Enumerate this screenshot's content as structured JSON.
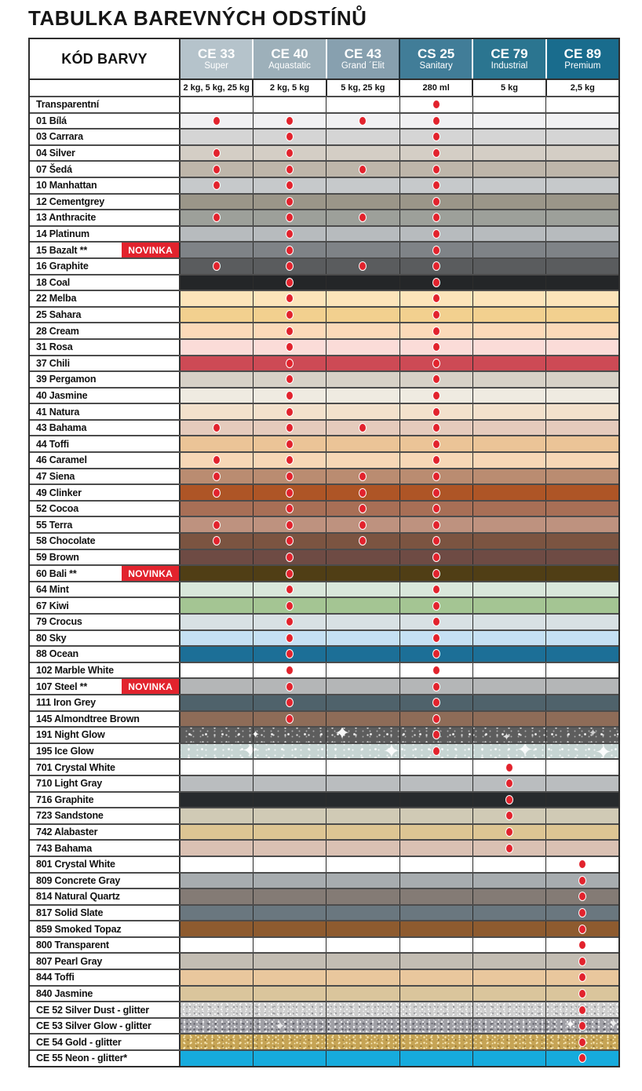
{
  "title": "TABULKA BAREVNÝCH ODSTÍNŮ",
  "colors": {
    "accent_red": "#e2232d",
    "grid_line": "#2e2e2e",
    "page_background": "#ffffff"
  },
  "table": {
    "code_header": "KÓD BARVY",
    "novinka_label": "NOVINKA",
    "columns": [
      {
        "id": "ce33",
        "code": "CE 33",
        "name": "Super",
        "size": "2 kg, 5 kg, 25 kg",
        "color": "#b5c3cb"
      },
      {
        "id": "ce40",
        "code": "CE 40",
        "name": "Aquastatic",
        "size": "2 kg, 5 kg",
        "color": "#9db0ba"
      },
      {
        "id": "ce43",
        "code": "CE 43",
        "name": "Grand ´Elit",
        "size": "5 kg, 25 kg",
        "color": "#87a0af"
      },
      {
        "id": "cs25",
        "code": "CS 25",
        "name": "Sanitary",
        "size": "280 ml",
        "color": "#417d98"
      },
      {
        "id": "ce79",
        "code": "CE 79",
        "name": "Industrial",
        "size": "5 kg",
        "color": "#2b7590"
      },
      {
        "id": "ce89",
        "code": "CE 89",
        "name": "Premium",
        "size": "2,5 kg",
        "color": "#196c8d"
      }
    ],
    "rows": [
      {
        "name": "Transparentní",
        "color": "#ffffff",
        "dots": [
          "cs25"
        ]
      },
      {
        "name": "01 Bílá",
        "color": "#f0f0f2",
        "dots": [
          "ce33",
          "ce40",
          "ce43",
          "cs25"
        ]
      },
      {
        "name": "03 Carrara",
        "color": "#d5d5d5",
        "dots": [
          "ce40",
          "cs25"
        ]
      },
      {
        "name": "04 Silver",
        "color": "#d4cec5",
        "dots": [
          "ce33",
          "ce40",
          "cs25"
        ]
      },
      {
        "name": "07 Šedá",
        "color": "#beb6aa",
        "dots": [
          "ce33",
          "ce40",
          "ce43",
          "cs25"
        ]
      },
      {
        "name": "10 Manhattan",
        "color": "#c6c9cb",
        "dots": [
          "ce33",
          "ce40",
          "cs25"
        ]
      },
      {
        "name": "12 Cementgrey",
        "color": "#9b9689",
        "dots": [
          "ce40",
          "cs25"
        ]
      },
      {
        "name": "13 Anthracite",
        "color": "#9da09a",
        "dots": [
          "ce33",
          "ce40",
          "ce43",
          "cs25"
        ]
      },
      {
        "name": "14 Platinum",
        "color": "#b7bbbe",
        "dots": [
          "ce40",
          "cs25"
        ]
      },
      {
        "name": "15 Bazalt **",
        "color": "#7f8387",
        "dots": [
          "ce40",
          "cs25"
        ],
        "novinka": true
      },
      {
        "name": "16 Graphite",
        "color": "#5a5c5e",
        "dots": [
          "ce33",
          "ce40",
          "ce43",
          "cs25"
        ]
      },
      {
        "name": "18 Coal",
        "color": "#242628",
        "dots": [
          "ce40",
          "cs25"
        ]
      },
      {
        "name": "22 Melba",
        "color": "#fce4ba",
        "dots": [
          "ce40",
          "cs25"
        ]
      },
      {
        "name": "25 Sahara",
        "color": "#f2d08f",
        "dots": [
          "ce40",
          "cs25"
        ]
      },
      {
        "name": "28 Cream",
        "color": "#fcdab9",
        "dots": [
          "ce40",
          "cs25"
        ]
      },
      {
        "name": "31 Rosa",
        "color": "#fbdcd8",
        "dots": [
          "ce40",
          "cs25"
        ]
      },
      {
        "name": "37 Chili",
        "color": "#cd4a55",
        "dots": [
          "ce40",
          "cs25"
        ]
      },
      {
        "name": "39 Pergamon",
        "color": "#d7d1c7",
        "dots": [
          "ce40",
          "cs25"
        ]
      },
      {
        "name": "40 Jasmine",
        "color": "#efebe1",
        "dots": [
          "ce40",
          "cs25"
        ]
      },
      {
        "name": "41 Natura",
        "color": "#f3e1cc",
        "dots": [
          "ce40",
          "cs25"
        ]
      },
      {
        "name": "43 Bahama",
        "color": "#e5cbbc",
        "dots": [
          "ce33",
          "ce40",
          "ce43",
          "cs25"
        ]
      },
      {
        "name": "44 Toffi",
        "color": "#ebc497",
        "dots": [
          "ce40",
          "cs25"
        ]
      },
      {
        "name": "46 Caramel",
        "color": "#f7d7b6",
        "dots": [
          "ce33",
          "ce40",
          "cs25"
        ]
      },
      {
        "name": "47 Siena",
        "color": "#ba8c71",
        "dots": [
          "ce33",
          "ce40",
          "ce43",
          "cs25"
        ]
      },
      {
        "name": "49 Clinker",
        "color": "#ae5526",
        "dots": [
          "ce33",
          "ce40",
          "ce43",
          "cs25"
        ]
      },
      {
        "name": "52 Cocoa",
        "color": "#a86f56",
        "dots": [
          "ce40",
          "ce43",
          "cs25"
        ]
      },
      {
        "name": "55 Terra",
        "color": "#be927f",
        "dots": [
          "ce33",
          "ce40",
          "ce43",
          "cs25"
        ]
      },
      {
        "name": "58 Chocolate",
        "color": "#7b5441",
        "dots": [
          "ce33",
          "ce40",
          "ce43",
          "cs25"
        ]
      },
      {
        "name": "59 Brown",
        "color": "#6e4b44",
        "dots": [
          "ce40",
          "cs25"
        ]
      },
      {
        "name": "60 Bali **",
        "color": "#503e15",
        "dots": [
          "ce40",
          "cs25"
        ],
        "novinka": true
      },
      {
        "name": "64 Mint",
        "color": "#d9e7db",
        "dots": [
          "ce40",
          "cs25"
        ]
      },
      {
        "name": "67 Kiwi",
        "color": "#a4c593",
        "dots": [
          "ce40",
          "cs25"
        ]
      },
      {
        "name": "79 Crocus",
        "color": "#d8e1e4",
        "dots": [
          "ce40",
          "cs25"
        ]
      },
      {
        "name": "80 Sky",
        "color": "#c5e0f3",
        "dots": [
          "ce40",
          "cs25"
        ]
      },
      {
        "name": "88 Ocean",
        "color": "#1c6f97",
        "dots": [
          "ce40",
          "cs25"
        ]
      },
      {
        "name": "102 Marble White",
        "color": "#ffffff",
        "dots": [
          "ce40",
          "cs25"
        ]
      },
      {
        "name": "107 Steel **",
        "color": "#b4b6b7",
        "dots": [
          "ce40",
          "cs25"
        ],
        "novinka": true
      },
      {
        "name": "111 Iron Grey",
        "color": "#4f626b",
        "dots": [
          "ce40",
          "cs25"
        ]
      },
      {
        "name": "145 Almondtree Brown",
        "color": "#8e6c58",
        "dots": [
          "ce40",
          "cs25"
        ]
      },
      {
        "name": "191 Night Glow",
        "color": "#5d5d5d",
        "dots": [
          "cs25"
        ],
        "texture": "glitter-dark"
      },
      {
        "name": "195 Ice Glow",
        "color": "#c7d5d3",
        "dots": [
          "cs25"
        ],
        "texture": "glitter-light"
      },
      {
        "name": "701 Crystal White",
        "color": "#ffffff",
        "dots": [
          "ce79"
        ]
      },
      {
        "name": "710 Light Gray",
        "color": "#babdbf",
        "dots": [
          "ce79"
        ]
      },
      {
        "name": "716 Graphite",
        "color": "#272a2d",
        "dots": [
          "ce79"
        ]
      },
      {
        "name": "723 Sandstone",
        "color": "#d0cab5",
        "dots": [
          "ce79"
        ]
      },
      {
        "name": "742 Alabaster",
        "color": "#ddc593",
        "dots": [
          "ce79"
        ]
      },
      {
        "name": "743 Bahama",
        "color": "#dac1b3",
        "dots": [
          "ce79"
        ]
      },
      {
        "name": "801 Crystal White",
        "color": "#ffffff",
        "dots": [
          "ce89"
        ]
      },
      {
        "name": "809 Concrete Gray",
        "color": "#a7acaf",
        "dots": [
          "ce89"
        ]
      },
      {
        "name": "814 Natural Quartz",
        "color": "#847b75",
        "dots": [
          "ce89"
        ]
      },
      {
        "name": "817 Solid Slate",
        "color": "#6a777f",
        "dots": [
          "ce89"
        ]
      },
      {
        "name": "859 Smoked Topaz",
        "color": "#8e5b2f",
        "dots": [
          "ce89"
        ]
      },
      {
        "name": "800 Transparent",
        "color": "#ffffff",
        "dots": [
          "ce89"
        ]
      },
      {
        "name": "807 Pearl Gray",
        "color": "#c3bdb3",
        "dots": [
          "ce89"
        ]
      },
      {
        "name": "844 Toffi",
        "color": "#e9c79d",
        "dots": [
          "ce89"
        ]
      },
      {
        "name": "840 Jasmine",
        "color": "#dac59c",
        "dots": [
          "ce89"
        ]
      },
      {
        "name": "CE 52 Silver Dust - glitter",
        "color": "#cecece",
        "dots": [
          "ce89"
        ],
        "texture": "glitter-silver"
      },
      {
        "name": "CE 53 Silver Glow - glitter",
        "color": "#a0a0a6",
        "dots": [
          "ce89"
        ],
        "texture": "glitter-silver-dark"
      },
      {
        "name": "CE 54 Gold - glitter",
        "color": "#c6a455",
        "dots": [
          "ce89"
        ],
        "texture": "glitter-gold"
      },
      {
        "name": "CE 55 Neon - glitter*",
        "color": "#16abdd",
        "dots": [
          "ce89"
        ]
      }
    ]
  }
}
